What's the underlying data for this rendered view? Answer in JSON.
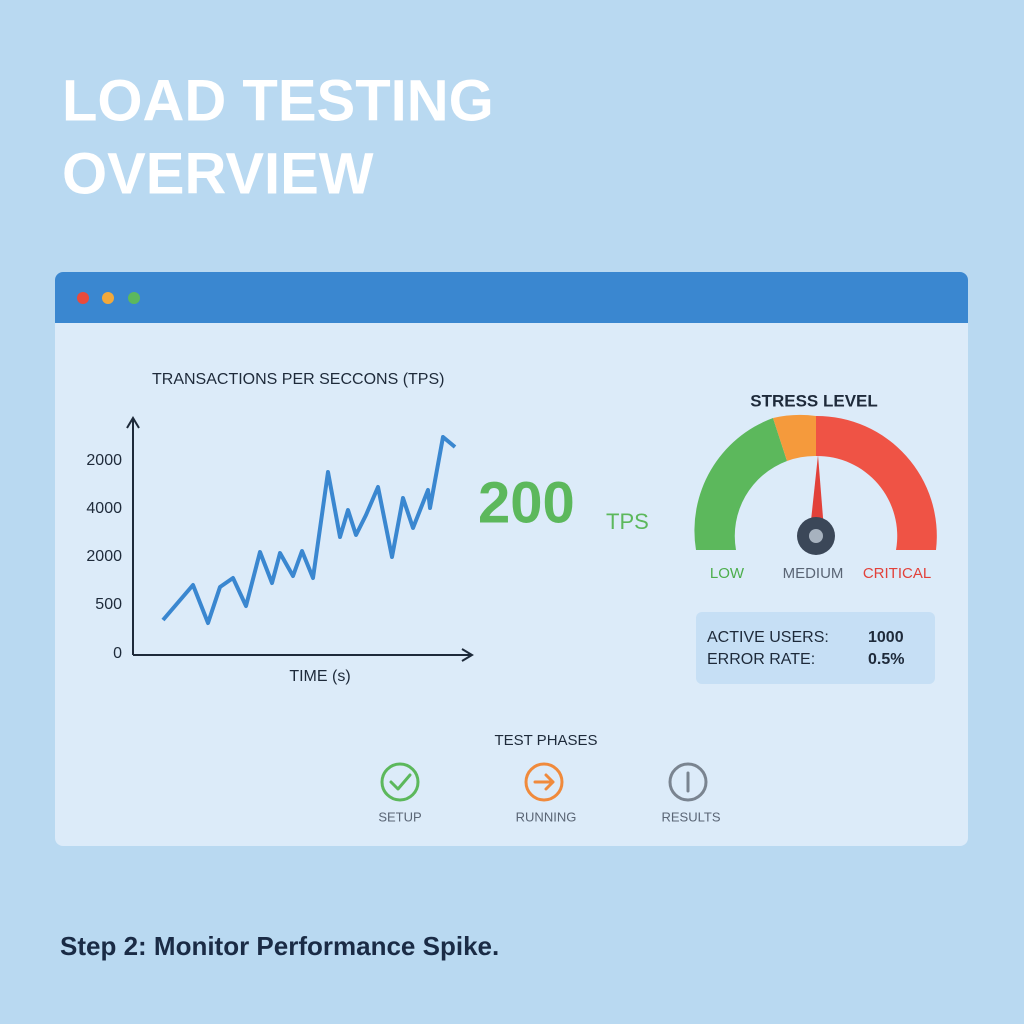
{
  "header": {
    "title": [
      "LOAD TESTING",
      "OVERVIEW"
    ]
  },
  "tps_chart": {
    "title": "TRANSACTIONS PER SECCONS (TPS)",
    "y_labels": [
      "2000",
      "4000",
      "2000",
      "500",
      "0"
    ],
    "x_label": "TIME (s)"
  },
  "metric": {
    "value": "200",
    "unit": "TPS"
  },
  "gauge": {
    "title": "STRESS LEVEL",
    "labels": [
      "LOW",
      "MEDIUM",
      "CRITICAL"
    ]
  },
  "stats": {
    "rows": [
      [
        "ACTIVE USERS:",
        "1000"
      ],
      [
        "ERROR RATE:",
        "0.5%"
      ]
    ]
  },
  "phases": {
    "title": "TEST PHASES",
    "items": [
      "SETUP",
      "RUNNING",
      "RESULTS"
    ]
  },
  "footer": {
    "text": "Step 2: Monitor Performance Spike."
  }
}
